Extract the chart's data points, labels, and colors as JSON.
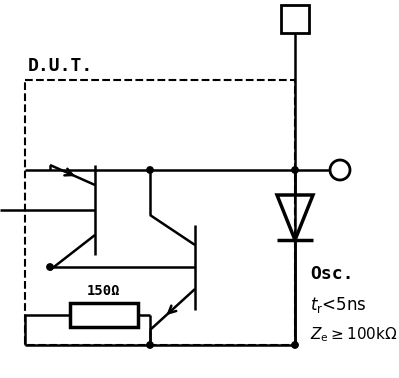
{
  "bg_color": "#ffffff",
  "line_color": "#000000",
  "lw": 1.8,
  "dot_r": 0.008,
  "fig_width": 3.99,
  "fig_height": 3.78,
  "resistor_label": "150Ω",
  "dut_label": "D.U.T.",
  "osc_label": "Osc.",
  "tr_label": "t_r<5ns",
  "ze_label": "Z_e≥100kΩ"
}
